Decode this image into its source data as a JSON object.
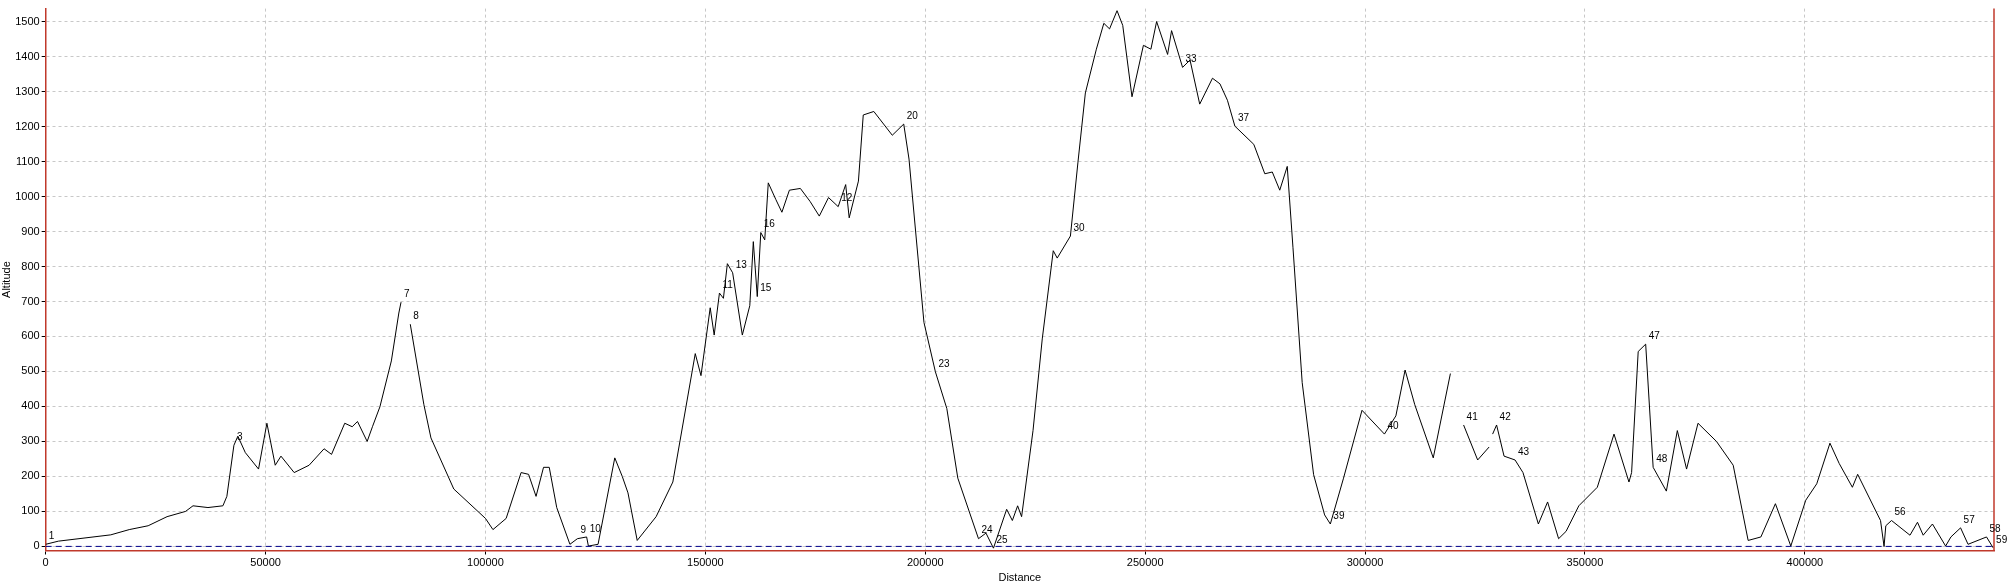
{
  "chart_data": {
    "type": "line",
    "xlabel": "Distance",
    "ylabel": "Altitude",
    "xlim": [
      0,
      443000
    ],
    "ylim": [
      -12,
      1537
    ],
    "xticks": [
      0,
      50000,
      100000,
      150000,
      200000,
      250000,
      300000,
      350000,
      400000
    ],
    "yticks": [
      0,
      100,
      200,
      300,
      400,
      500,
      600,
      700,
      800,
      900,
      1000,
      1100,
      1200,
      1300,
      1400,
      1500
    ],
    "grid": true,
    "legend": false,
    "marker": "none",
    "line_style": "solid",
    "ref_lines": [
      {
        "axis": "y",
        "value": 0,
        "color": "#00008b",
        "line_style": "dashed"
      }
    ],
    "series": [
      {
        "color": "#000000",
        "x": [
          0,
          2900,
          14800,
          19000,
          23300,
          27600,
          31800,
          33500,
          36900,
          40300,
          41200,
          42800,
          43700,
          45400,
          48400,
          50300,
          52200,
          53500,
          56500,
          59900,
          63300,
          65000,
          68000,
          69700,
          70900,
          73100,
          74300,
          76000,
          78600,
          80300,
          80800,
          81800,
          82900,
          86000,
          87600,
          92800,
          100000,
          101700,
          104700,
          108100,
          109800,
          111500,
          113200,
          114500,
          116200,
          119200,
          120900,
          123000,
          123400,
          125600,
          129400,
          131100,
          132400,
          134500,
          138800,
          142600,
          147700,
          149000,
          151100,
          152000,
          153200,
          154100,
          155000,
          156200,
          158400,
          160100,
          160900,
          161800,
          162600,
          163500,
          164300,
          166000,
          167400,
          169100,
          171600,
          173800,
          175900,
          178000,
          180200,
          181900,
          182700,
          184800,
          185900,
          188300,
          192500,
          195100,
          196300,
          199700,
          202300,
          204900,
          207400,
          212100,
          213800,
          215500,
          218500,
          219800,
          221000,
          221900,
          224500,
          226600,
          229100,
          230000,
          233000,
          234700,
          236400,
          238900,
          240600,
          241900,
          243600,
          244900,
          247000,
          249600,
          251300,
          252600,
          255100,
          256000,
          258500,
          260200,
          262400,
          265300,
          267000,
          268700,
          270400,
          274700,
          277200,
          278900,
          280600,
          282300,
          283600,
          285700,
          288300,
          290800,
          292100,
          295100,
          299300,
          304400,
          307000,
          309100,
          311300,
          315500,
          319400,
          320900,
          322400,
          325600,
          328200,
          328600,
          329000,
          329900,
          331600,
          334100,
          335900,
          339400,
          341500,
          344000,
          345700,
          348600,
          352800,
          356600,
          360000,
          360600,
          362100,
          363800,
          365500,
          368500,
          371000,
          373100,
          375700,
          379900,
          383700,
          387100,
          390000,
          393300,
          396800,
          400200,
          402700,
          405700,
          407800,
          410800,
          412000,
          417200,
          418000,
          418400,
          419700,
          423900,
          425600,
          426900,
          429000,
          432000,
          433200,
          435400,
          437100,
          441300,
          442800
        ],
        "values": [
          6,
          15,
          33,
          48,
          59,
          85,
          100,
          116,
          111,
          116,
          143,
          289,
          315,
          268,
          221,
          352,
          232,
          258,
          211,
          232,
          279,
          263,
          352,
          342,
          357,
          300,
          342,
          399,
          530,
          667,
          698,
          null,
          635,
          405,
          310,
          164,
          80,
          48,
          80,
          211,
          206,
          143,
          226,
          226,
          111,
          6,
          22,
          27,
          1,
          6,
          253,
          200,
          153,
          17,
          85,
          184,
          551,
          488,
          682,
          604,
          724,
          709,
          808,
          782,
          604,
          688,
          871,
          714,
          897,
          876,
          1039,
          992,
          955,
          1018,
          1023,
          986,
          944,
          997,
          971,
          1034,
          939,
          1044,
          1233,
          1243,
          1175,
          1207,
          1107,
          640,
          499,
          394,
          195,
          22,
          38,
          -5,
          106,
          74,
          116,
          85,
          331,
          593,
          845,
          824,
          887,
          1096,
          1296,
          1421,
          1495,
          1479,
          1531,
          1489,
          1285,
          1432,
          1421,
          1500,
          1406,
          1474,
          1369,
          1390,
          1264,
          1338,
          1322,
          1275,
          1201,
          1149,
          1065,
          1070,
          1018,
          1086,
          855,
          468,
          205,
          90,
          64,
          195,
          389,
          321,
          373,
          504,
          405,
          253,
          494,
          null,
          347,
          247,
          284,
          null,
          321,
          347,
          258,
          247,
          211,
          64,
          127,
          22,
          43,
          116,
          169,
          321,
          184,
          211,
          557,
          578,
          226,
          158,
          331,
          221,
          352,
          300,
          232,
          17,
          27,
          122,
          1,
          132,
          179,
          295,
          237,
          169,
          206,
          74,
          0,
          59,
          74,
          32,
          69,
          32,
          64,
          1,
          27,
          53,
          6,
          27,
          -4
        ]
      }
    ],
    "annotations": [
      {
        "text": "1",
        "x": 0,
        "y": 6
      },
      {
        "text": "3",
        "x": 42800,
        "y": 289
      },
      {
        "text": "7",
        "x": 80800,
        "y": 698
      },
      {
        "text": "8",
        "x": 82900,
        "y": 635
      },
      {
        "text": "9",
        "x": 120900,
        "y": 22
      },
      {
        "text": "10",
        "x": 123000,
        "y": 27
      },
      {
        "text": "11",
        "x": 153200,
        "y": 724
      },
      {
        "text": "13",
        "x": 156200,
        "y": 782
      },
      {
        "text": "16",
        "x": 162600,
        "y": 897
      },
      {
        "text": "15",
        "x": 161800,
        "y": 714
      },
      {
        "text": "12",
        "x": 180200,
        "y": 971
      },
      {
        "text": "20",
        "x": 195100,
        "y": 1207
      },
      {
        "text": "23",
        "x": 202300,
        "y": 499
      },
      {
        "text": "24",
        "x": 212100,
        "y": 22
      },
      {
        "text": "25",
        "x": 215500,
        "y": -5
      },
      {
        "text": "30",
        "x": 233000,
        "y": 887
      },
      {
        "text": "33",
        "x": 258500,
        "y": 1369
      },
      {
        "text": "37",
        "x": 270400,
        "y": 1201
      },
      {
        "text": "39",
        "x": 292100,
        "y": 64
      },
      {
        "text": "40",
        "x": 304400,
        "y": 321
      },
      {
        "text": "41",
        "x": 322400,
        "y": 347
      },
      {
        "text": "42",
        "x": 329900,
        "y": 347
      },
      {
        "text": "43",
        "x": 334100,
        "y": 247
      },
      {
        "text": "47",
        "x": 363800,
        "y": 578
      },
      {
        "text": "48",
        "x": 365500,
        "y": 226
      },
      {
        "text": "56",
        "x": 419700,
        "y": 74
      },
      {
        "text": "57",
        "x": 435400,
        "y": 53
      },
      {
        "text": "58",
        "x": 441300,
        "y": 27
      },
      {
        "text": "59",
        "x": 442800,
        "y": -4
      }
    ]
  }
}
